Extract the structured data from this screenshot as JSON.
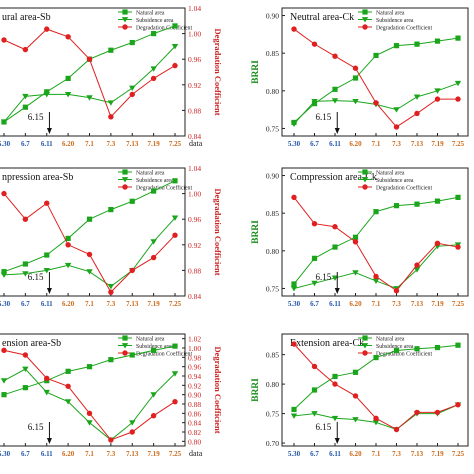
{
  "chart_data": [
    {
      "type": "line",
      "title": "Natural area-Sb",
      "title_visible": "ural area-Sb",
      "categories": [
        "5.30",
        "6.7",
        "6.11",
        "6.20",
        "7.1",
        "7.3",
        "7.13",
        "7.19",
        "7.25"
      ],
      "xlabel": "data",
      "ylabel": "",
      "ylabel_right": "Degradation Coefficient",
      "y_right_ticks": [
        "0.84",
        "0.88",
        "0.92",
        "0.96",
        "1.00",
        "1.04"
      ],
      "ylim_right": [
        0.84,
        1.04
      ],
      "annotation": "6.15",
      "series": [
        {
          "name": "Natural area",
          "color": "#1aa51a",
          "marker": "square",
          "values": [
            0.862,
            0.885,
            0.909,
            0.93,
            0.96,
            0.974,
            0.986,
            1.0,
            1.012
          ]
        },
        {
          "name": "Subsidence area",
          "color": "#1aa51a",
          "marker": "triangle-down",
          "values": [
            0.862,
            0.902,
            0.905,
            0.905,
            0.9,
            0.892,
            0.915,
            0.945,
            0.98
          ]
        },
        {
          "name": "Degradation Coefficient",
          "color": "#e02020",
          "marker": "circle",
          "values": [
            0.99,
            0.975,
            1.007,
            0.995,
            0.96,
            0.87,
            0.905,
            0.93,
            0.95
          ]
        }
      ]
    },
    {
      "type": "line",
      "title": "Neutral area-Ck",
      "categories": [
        "5.30",
        "6.7",
        "6.11",
        "6.20",
        "7.1",
        "7.3",
        "7.13",
        "7.19",
        "7.25"
      ],
      "xlabel": "",
      "ylabel": "BRRI",
      "y_ticks": [
        "0.75",
        "0.80",
        "0.85",
        "0.90"
      ],
      "ylim": [
        0.74,
        0.91
      ],
      "annotation": "6.15",
      "series": [
        {
          "name": "Natural area",
          "color": "#1aa51a",
          "marker": "square",
          "values": [
            0.758,
            0.783,
            0.802,
            0.817,
            0.847,
            0.86,
            0.862,
            0.866,
            0.87
          ]
        },
        {
          "name": "Subsidence area",
          "color": "#1aa51a",
          "marker": "triangle-down",
          "values": [
            0.756,
            0.786,
            0.787,
            0.786,
            0.782,
            0.775,
            0.792,
            0.8,
            0.81
          ]
        },
        {
          "name": "Degradation Coefficient",
          "color": "#e02020",
          "marker": "circle",
          "values": [
            0.882,
            0.862,
            0.846,
            0.83,
            0.784,
            0.752,
            0.77,
            0.789,
            0.789
          ]
        }
      ]
    },
    {
      "type": "line",
      "title": "Compression area-Sb",
      "title_visible": "npression area-Sb",
      "categories": [
        "5.30",
        "6.7",
        "6.11",
        "6.20",
        "7.1",
        "7.3",
        "7.13",
        "7.19",
        "7.25"
      ],
      "xlabel": "",
      "ylabel": "",
      "ylabel_right": "Degradation Coefficient",
      "y_right_ticks": [
        "0.84",
        "0.88",
        "0.92",
        "0.96",
        "1.00",
        "1.04"
      ],
      "ylim_right": [
        0.84,
        1.04
      ],
      "annotation": "6.15",
      "series": [
        {
          "name": "Natural area",
          "color": "#1aa51a",
          "marker": "square",
          "values": [
            0.878,
            0.89,
            0.904,
            0.93,
            0.96,
            0.975,
            0.988,
            1.004,
            1.02
          ]
        },
        {
          "name": "Subsidence area",
          "color": "#1aa51a",
          "marker": "triangle-down",
          "values": [
            0.873,
            0.875,
            0.88,
            0.888,
            0.878,
            0.855,
            0.88,
            0.925,
            0.962
          ]
        },
        {
          "name": "Degradation Coefficient",
          "color": "#e02020",
          "marker": "circle",
          "values": [
            1.0,
            0.96,
            0.985,
            0.92,
            0.905,
            0.846,
            0.88,
            0.9,
            0.935
          ]
        }
      ]
    },
    {
      "type": "line",
      "title": "Compression area-Ck",
      "categories": [
        "5.30",
        "6.7",
        "6.11",
        "6.20",
        "7.1",
        "7.3",
        "7.13",
        "7.19",
        "7.25"
      ],
      "xlabel": "",
      "ylabel": "BRRI",
      "y_ticks": [
        "0.75",
        "0.80",
        "0.85",
        "0.90"
      ],
      "ylim": [
        0.74,
        0.91
      ],
      "annotation": "6.15",
      "series": [
        {
          "name": "Natural area",
          "color": "#1aa51a",
          "marker": "square",
          "values": [
            0.756,
            0.79,
            0.805,
            0.818,
            0.852,
            0.86,
            0.862,
            0.866,
            0.871
          ]
        },
        {
          "name": "Subsidence area",
          "color": "#1aa51a",
          "marker": "triangle-down",
          "values": [
            0.75,
            0.757,
            0.764,
            0.771,
            0.76,
            0.75,
            0.775,
            0.806,
            0.808
          ]
        },
        {
          "name": "Degradation Coefficient",
          "color": "#e02020",
          "marker": "circle",
          "values": [
            0.871,
            0.836,
            0.832,
            0.812,
            0.766,
            0.747,
            0.781,
            0.81,
            0.805
          ]
        }
      ]
    },
    {
      "type": "line",
      "title": "Extension area-Sb",
      "title_visible": "ension area-Sb",
      "categories": [
        "5.30",
        "6.7",
        "6.11",
        "6.20",
        "7.1",
        "7.3",
        "7.13",
        "7.19",
        "7.25"
      ],
      "xlabel": "data",
      "ylabel": "",
      "ylabel_right": "Degradation Coefficient",
      "y_right_ticks": [
        "0.80",
        "0.82",
        "0.84",
        "0.86",
        "0.88",
        "0.90",
        "0.92",
        "0.94",
        "0.96",
        "0.98",
        "1.00",
        "1.02"
      ],
      "ylim_right": [
        0.79,
        1.03
      ],
      "annotation": "6.15",
      "series": [
        {
          "name": "Natural area",
          "color": "#1aa51a",
          "marker": "square",
          "values": [
            0.9,
            0.915,
            0.93,
            0.95,
            0.96,
            0.975,
            0.985,
            0.995,
            1.004
          ]
        },
        {
          "name": "Subsidence area",
          "color": "#1aa51a",
          "marker": "triangle-down",
          "values": [
            0.93,
            0.955,
            0.905,
            0.885,
            0.84,
            0.803,
            0.84,
            0.9,
            0.945
          ]
        },
        {
          "name": "Degradation Coefficient",
          "color": "#e02020",
          "marker": "circle",
          "values": [
            0.995,
            0.985,
            0.935,
            0.918,
            0.86,
            0.803,
            0.82,
            0.855,
            0.885
          ]
        }
      ]
    },
    {
      "type": "line",
      "title": "Extension area-Ck",
      "categories": [
        "5.30",
        "6.7",
        "6.11",
        "6.20",
        "7.1",
        "7.3",
        "7.13",
        "7.19",
        "7.25"
      ],
      "xlabel": "",
      "ylabel": "BRRI",
      "y_ticks": [
        "0.70",
        "0.75",
        "0.80",
        "0.85"
      ],
      "ylim": [
        0.695,
        0.885
      ],
      "annotation": "6.15",
      "series": [
        {
          "name": "Natural area",
          "color": "#1aa51a",
          "marker": "square",
          "values": [
            0.757,
            0.79,
            0.813,
            0.82,
            0.845,
            0.857,
            0.86,
            0.862,
            0.866
          ]
        },
        {
          "name": "Subsidence area",
          "color": "#1aa51a",
          "marker": "triangle-down",
          "values": [
            0.746,
            0.75,
            0.742,
            0.74,
            0.735,
            0.723,
            0.75,
            0.75,
            0.765
          ]
        },
        {
          "name": "Degradation Coefficient",
          "color": "#e02020",
          "marker": "circle",
          "values": [
            0.868,
            0.83,
            0.8,
            0.78,
            0.742,
            0.723,
            0.752,
            0.752,
            0.765
          ]
        }
      ]
    }
  ]
}
